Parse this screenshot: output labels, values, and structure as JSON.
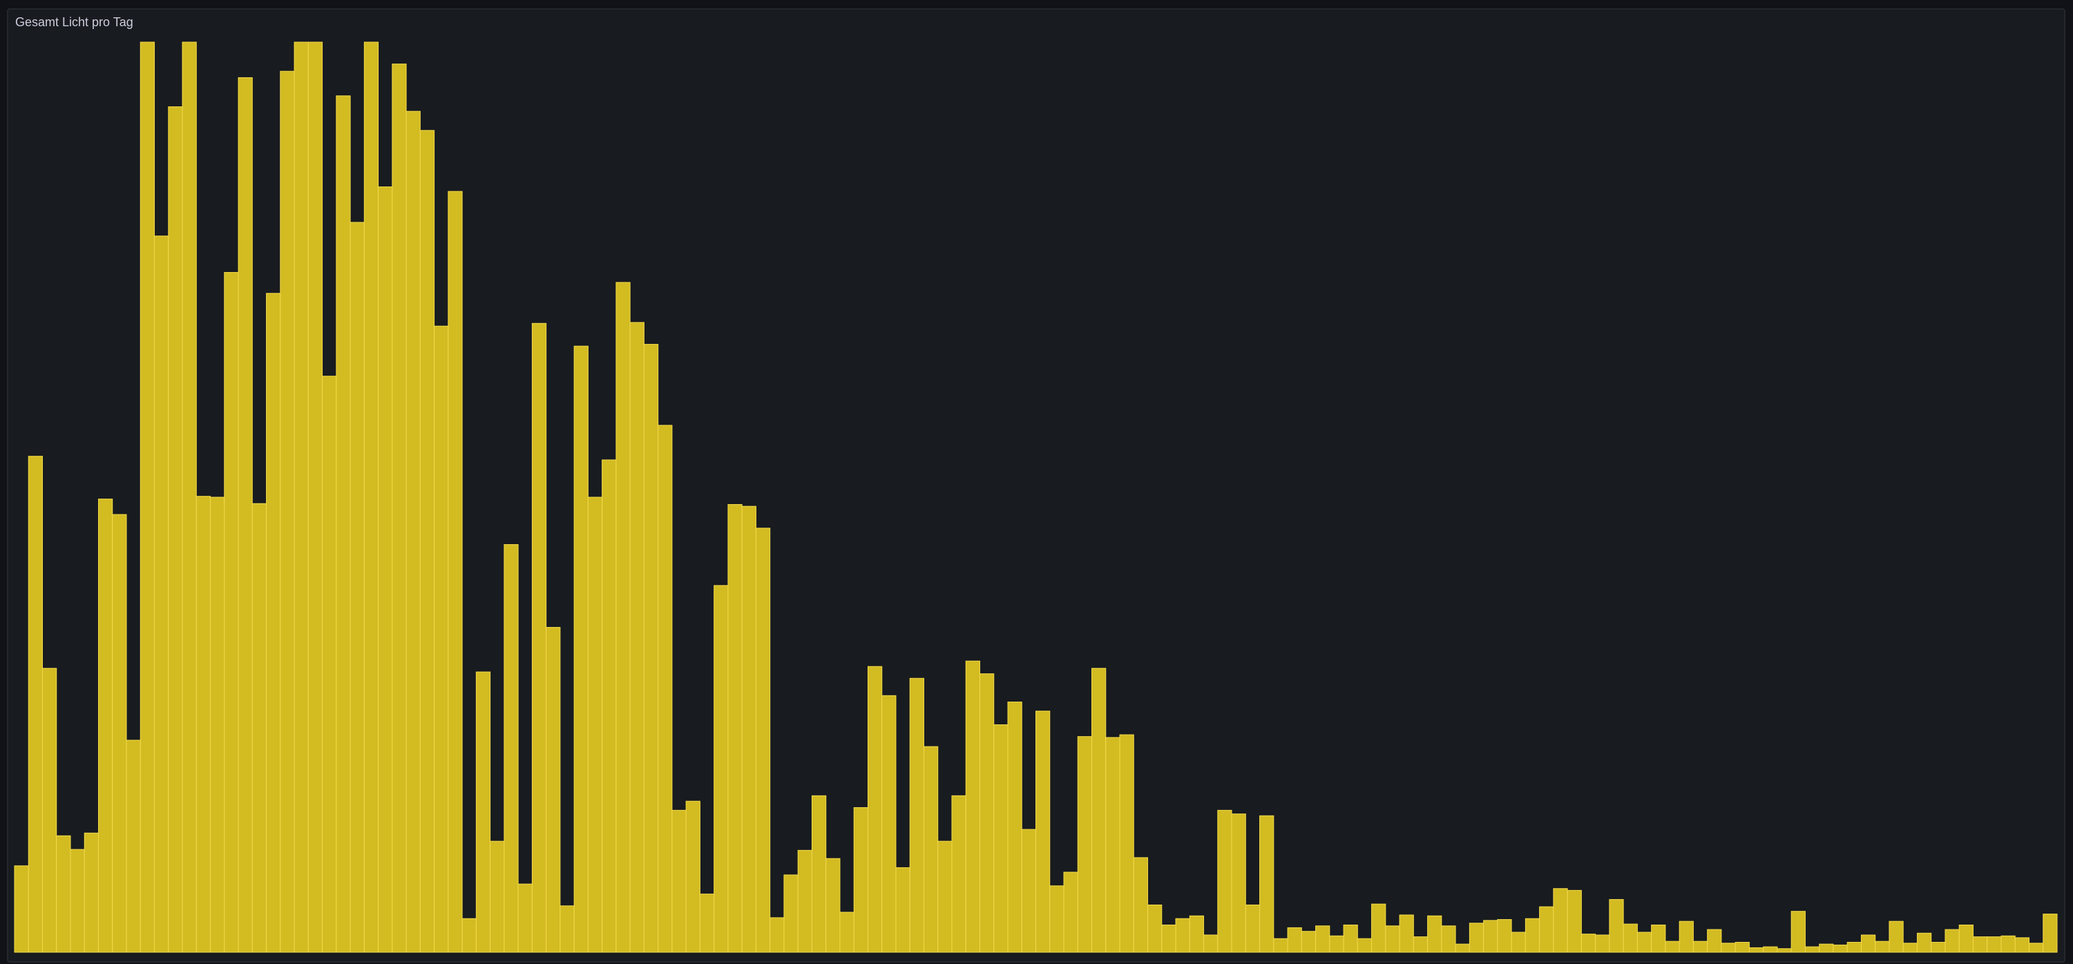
{
  "panel": {
    "title": "Gesamt Licht pro Tag"
  },
  "colors": {
    "background": "#111217",
    "panel": "#181b1f",
    "bar_fill": "#d3bb22",
    "bar_stroke": "#f2da4a"
  },
  "chart_data": {
    "type": "bar",
    "title": "Gesamt Licht pro Tag",
    "xlabel": "",
    "ylabel": "",
    "grid": false,
    "legend": "none",
    "ylim": [
      0,
      100
    ],
    "values": [
      9.5,
      54.5,
      31.2,
      12.8,
      11.3,
      13.1,
      49.8,
      48.1,
      23.3,
      100,
      78.7,
      92.9,
      100,
      50.1,
      50.0,
      74.7,
      96.1,
      49.3,
      72.4,
      96.8,
      100,
      100,
      63.3,
      94.1,
      80.2,
      100,
      84.1,
      97.6,
      92.4,
      90.3,
      68.8,
      83.6,
      3.7,
      30.8,
      12.2,
      44.8,
      7.5,
      69.1,
      35.7,
      5.1,
      66.6,
      50.0,
      54.1,
      73.6,
      69.2,
      66.8,
      57.9,
      15.6,
      16.6,
      6.4,
      40.3,
      49.2,
      49.0,
      46.6,
      3.8,
      8.5,
      11.2,
      17.2,
      10.3,
      4.4,
      15.9,
      31.4,
      28.2,
      9.3,
      30.1,
      22.6,
      12.2,
      17.2,
      32.0,
      30.6,
      25.0,
      27.5,
      13.5,
      26.5,
      7.3,
      8.8,
      23.7,
      31.2,
      23.6,
      23.9,
      10.4,
      5.2,
      3.0,
      3.7,
      4.0,
      1.9,
      15.6,
      15.2,
      5.2,
      15.0,
      1.5,
      2.7,
      2.3,
      2.9,
      1.8,
      3.0,
      1.5,
      5.3,
      2.9,
      4.1,
      1.7,
      4.0,
      2.9,
      0.9,
      3.2,
      3.5,
      3.6,
      2.2,
      3.7,
      5.0,
      7.0,
      6.8,
      2.0,
      1.9,
      5.8,
      3.1,
      2.2,
      3.0,
      1.2,
      3.4,
      1.2,
      2.5,
      1.0,
      1.1,
      0.5,
      0.6,
      0.4,
      4.5,
      0.6,
      0.9,
      0.8,
      1.1,
      1.9,
      1.2,
      3.4,
      1.0,
      2.1,
      1.1,
      2.5,
      3.0,
      1.7,
      1.7,
      1.8,
      1.6,
      1.0,
      4.2
    ]
  }
}
